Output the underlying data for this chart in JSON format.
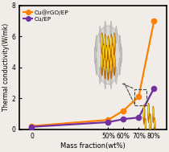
{
  "x_labels": [
    "0",
    "50%",
    "60%",
    "70%",
    "80%"
  ],
  "x_values": [
    0,
    50,
    60,
    70,
    80
  ],
  "cu_rgo_ep_y": [
    0.2,
    0.6,
    1.2,
    2.1,
    7.0
  ],
  "cu_ep_y": [
    0.15,
    0.45,
    0.65,
    0.75,
    2.65
  ],
  "orange_color": "#FF8000",
  "purple_color": "#7030A0",
  "xlabel": "Mass fraction(wt%)",
  "ylabel": "Thermal conductivity(W/mk)",
  "ylim": [
    0,
    8
  ],
  "xlim": [
    -8,
    88
  ],
  "legend_labels": [
    "Cu@rGO/EP",
    "Cu/EP"
  ],
  "bg_color": "#f0ede8",
  "yticks": [
    0,
    2,
    4,
    6,
    8
  ],
  "ytick_labels": [
    "0",
    "2",
    "4",
    "6",
    "8"
  ]
}
